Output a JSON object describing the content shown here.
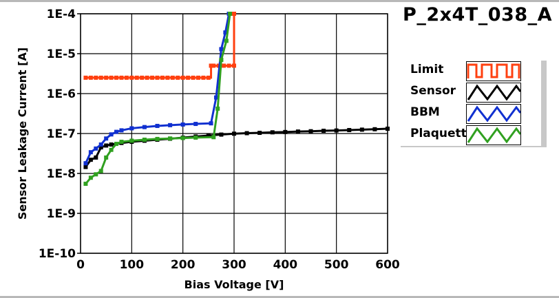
{
  "title": "P_2x4T_038_A",
  "legend": [
    {
      "label": "Limit",
      "color": "#ff4010",
      "icon": "square-wave"
    },
    {
      "label": "Sensor",
      "color": "#000000",
      "icon": "triangle-wave"
    },
    {
      "label": "BBM",
      "color": "#1030d0",
      "icon": "triangle-wave"
    },
    {
      "label": "Plaquette",
      "color": "#30a020",
      "icon": "triangle-wave"
    }
  ],
  "chart_data": {
    "type": "line",
    "title": "P_2x4T_038_A",
    "xlabel": "Bias Voltage [V]",
    "ylabel": "Sensor Leakage Current [A]",
    "xlim": [
      0,
      600
    ],
    "ylim": [
      1e-10,
      0.0001
    ],
    "yscale": "log",
    "grid": true,
    "legend_position": "right",
    "x_ticks": [
      "0",
      "100",
      "200",
      "300",
      "400",
      "500",
      "600"
    ],
    "y_ticks": [
      "1E-4",
      "1E-5",
      "1E-6",
      "1E-7",
      "1E-8",
      "1E-9",
      "1E-10"
    ],
    "series": [
      {
        "name": "Limit",
        "color": "#ff4010",
        "step": true,
        "x": [
          10,
          20,
          30,
          40,
          50,
          60,
          70,
          80,
          90,
          100,
          110,
          120,
          130,
          140,
          150,
          160,
          170,
          180,
          190,
          200,
          210,
          220,
          230,
          240,
          250,
          255,
          260,
          270,
          280,
          290,
          300,
          300
        ],
        "y": [
          2.5e-06,
          2.5e-06,
          2.5e-06,
          2.5e-06,
          2.5e-06,
          2.5e-06,
          2.5e-06,
          2.5e-06,
          2.5e-06,
          2.5e-06,
          2.5e-06,
          2.5e-06,
          2.5e-06,
          2.5e-06,
          2.5e-06,
          2.5e-06,
          2.5e-06,
          2.5e-06,
          2.5e-06,
          2.5e-06,
          2.5e-06,
          2.5e-06,
          2.5e-06,
          2.5e-06,
          2.5e-06,
          5e-06,
          5e-06,
          5e-06,
          5e-06,
          5e-06,
          5e-06,
          0.0001
        ]
      },
      {
        "name": "Sensor",
        "color": "#000000",
        "x": [
          10,
          20,
          30,
          40,
          50,
          60,
          80,
          100,
          125,
          150,
          175,
          200,
          225,
          250,
          275,
          300,
          325,
          350,
          375,
          400,
          425,
          450,
          475,
          500,
          525,
          550,
          575,
          600
        ],
        "y": [
          1.45e-08,
          2.2e-08,
          2.5e-08,
          4.5e-08,
          5e-08,
          5.3e-08,
          5.8e-08,
          6.2e-08,
          6.6e-08,
          7e-08,
          7.4e-08,
          7.9e-08,
          8.4e-08,
          8.9e-08,
          9.4e-08,
          9.9e-08,
          1.02e-07,
          1.04e-07,
          1.07e-07,
          1.09e-07,
          1.12e-07,
          1.14e-07,
          1.17e-07,
          1.19e-07,
          1.22e-07,
          1.25e-07,
          1.28e-07,
          1.32e-07
        ]
      },
      {
        "name": "BBM",
        "color": "#1030d0",
        "x": [
          10,
          20,
          30,
          40,
          50,
          60,
          70,
          80,
          100,
          125,
          150,
          175,
          200,
          225,
          255,
          265,
          275,
          283,
          290
        ],
        "y": [
          1.8e-08,
          3.4e-08,
          4.2e-08,
          5.3e-08,
          7.5e-08,
          9.5e-08,
          1.1e-07,
          1.2e-07,
          1.35e-07,
          1.45e-07,
          1.55e-07,
          1.62e-07,
          1.68e-07,
          1.74e-07,
          1.8e-07,
          8e-07,
          1.3e-05,
          3.4e-05,
          0.0001
        ]
      },
      {
        "name": "Plaquette",
        "color": "#30a020",
        "x": [
          10,
          20,
          30,
          40,
          50,
          60,
          70,
          80,
          100,
          125,
          150,
          175,
          200,
          225,
          260,
          268,
          275,
          285,
          292
        ],
        "y": [
          5.5e-09,
          7.8e-09,
          9.5e-09,
          1.15e-08,
          2.5e-08,
          3.9e-08,
          5.5e-08,
          6.2e-08,
          6.6e-08,
          7e-08,
          7.3e-08,
          7.5e-08,
          7.7e-08,
          7.9e-08,
          8.1e-08,
          4.2e-07,
          7e-06,
          2.1e-05,
          0.0001
        ]
      }
    ]
  }
}
